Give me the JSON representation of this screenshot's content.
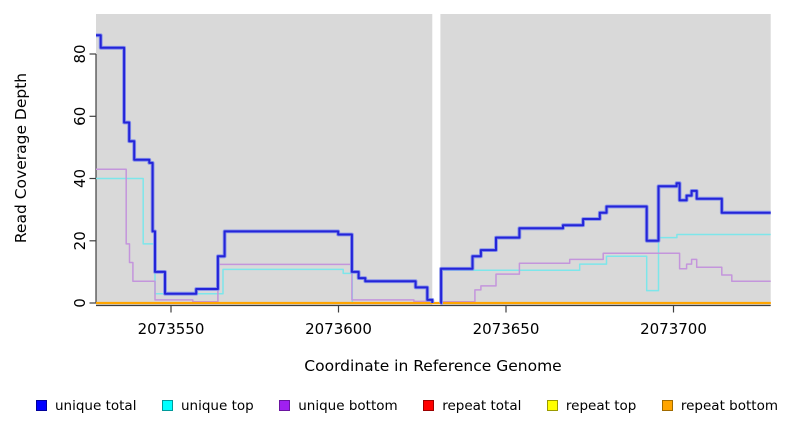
{
  "figure": {
    "background": "#ffffff"
  },
  "chart_data": {
    "type": "line",
    "subtype": "step",
    "title": "",
    "xlabel": "Coordinate in Reference Genome",
    "ylabel": "Read Coverage Depth",
    "xlim": [
      2073527.6,
      2073729
    ],
    "ylim": [
      0,
      93
    ],
    "xticks": [
      2073550,
      2073600,
      2073650,
      2073700
    ],
    "yticks": [
      0,
      20,
      40,
      60,
      80
    ],
    "gap_x": [
      2073628,
      2073630.4
    ],
    "plot_bg": "#d9d9d9",
    "axis_color": "#3f3f3f",
    "text_color": "#000000",
    "legend_position": "bottom",
    "grid": false,
    "series": [
      {
        "name": "unique total",
        "key": "unique-total",
        "color": "#2424d8",
        "halo": "#8893ea",
        "legend_color": "#0000ff",
        "legend_border": "#00009a",
        "width": 2,
        "zorder": 6,
        "segments": [
          [
            [
              2073527.6,
              86
            ],
            [
              2073529,
              82
            ],
            [
              2073536,
              58
            ],
            [
              2073537.5,
              52
            ],
            [
              2073539,
              46
            ],
            [
              2073543.5,
              45
            ],
            [
              2073544.5,
              23
            ],
            [
              2073545.2,
              10
            ],
            [
              2073548.2,
              3
            ],
            [
              2073557.5,
              4.5
            ],
            [
              2073564,
              15
            ],
            [
              2073566,
              23
            ],
            [
              2073599.9,
              22
            ],
            [
              2073604,
              10
            ],
            [
              2073606,
              8
            ],
            [
              2073608,
              7
            ],
            [
              2073623,
              5
            ],
            [
              2073626.5,
              1
            ],
            [
              2073628,
              0
            ]
          ],
          [
            [
              2073630.4,
              0
            ],
            [
              2073630.6,
              11
            ],
            [
              2073640,
              15
            ],
            [
              2073642.5,
              17
            ],
            [
              2073647,
              21
            ],
            [
              2073654,
              24
            ],
            [
              2073667,
              25
            ],
            [
              2073673,
              27
            ],
            [
              2073678,
              29
            ],
            [
              2073680,
              31
            ],
            [
              2073692,
              20
            ],
            [
              2073695.5,
              37.5
            ],
            [
              2073700.9,
              38.5
            ],
            [
              2073701.8,
              33
            ],
            [
              2073703.9,
              34.5
            ],
            [
              2073705.4,
              36
            ],
            [
              2073706.9,
              33.5
            ],
            [
              2073714.4,
              29
            ],
            [
              2073729,
              29
            ]
          ]
        ]
      },
      {
        "name": "unique top",
        "key": "unique-top",
        "color": "#7de6ea",
        "legend_color": "#00ffff",
        "legend_border": "#009a9a",
        "width": 1.5,
        "zorder": 1,
        "segments": [
          [
            [
              2073527.6,
              40
            ],
            [
              2073541.7,
              19
            ],
            [
              2073545.2,
              3
            ],
            [
              2073565.5,
              10.8
            ],
            [
              2073601.4,
              9.5
            ],
            [
              2073604.1,
              0
            ],
            [
              2073628,
              0
            ]
          ],
          [
            [
              2073630.4,
              10.5
            ],
            [
              2073672,
              12.5
            ],
            [
              2073680,
              15
            ],
            [
              2073692,
              4
            ],
            [
              2073695.5,
              21
            ],
            [
              2073701,
              22
            ],
            [
              2073729,
              22
            ]
          ]
        ]
      },
      {
        "name": "unique bottom",
        "key": "unique-bottom",
        "color": "#c495dc",
        "legend_color": "#a020f0",
        "legend_border": "#6a14a0",
        "width": 1.5,
        "zorder": 2,
        "segments": [
          [
            [
              2073527.6,
              43
            ],
            [
              2073536.6,
              19
            ],
            [
              2073537.6,
              13
            ],
            [
              2073538.6,
              7
            ],
            [
              2073545.2,
              1
            ],
            [
              2073556.5,
              0.4
            ],
            [
              2073564,
              12.4
            ],
            [
              2073604,
              1
            ],
            [
              2073622.5,
              0.5
            ],
            [
              2073628,
              0.3
            ]
          ],
          [
            [
              2073630.4,
              0.4
            ],
            [
              2073640.7,
              4.2
            ],
            [
              2073642.5,
              5.5
            ],
            [
              2073647,
              9.3
            ],
            [
              2073654,
              12.8
            ],
            [
              2073669,
              14
            ],
            [
              2073679,
              16
            ],
            [
              2073701.8,
              11
            ],
            [
              2073703.9,
              12.5
            ],
            [
              2073705.4,
              14
            ],
            [
              2073706.9,
              11.5
            ],
            [
              2073714.4,
              9
            ],
            [
              2073717.4,
              7
            ],
            [
              2073729,
              7
            ]
          ]
        ]
      },
      {
        "name": "repeat total",
        "key": "repeat-total",
        "color": "#ff0000",
        "legend_color": "#ff0000",
        "legend_border": "#9a0000",
        "width": 1.3,
        "zorder": 3,
        "segments": [
          [
            [
              2073527.6,
              0
            ],
            [
              2073729,
              0
            ]
          ]
        ]
      },
      {
        "name": "repeat top",
        "key": "repeat-top",
        "color": "#ffff00",
        "legend_color": "#ffff00",
        "legend_border": "#9a9a00",
        "width": 1.3,
        "zorder": 4,
        "segments": [
          [
            [
              2073527.6,
              0
            ],
            [
              2073729,
              0
            ]
          ]
        ]
      },
      {
        "name": "repeat bottom",
        "key": "repeat-bottom",
        "color": "#ffa500",
        "legend_color": "#ffa500",
        "legend_border": "#a06a00",
        "width": 2.2,
        "zorder": 5,
        "segments": [
          [
            [
              2073527.6,
              0
            ],
            [
              2073729,
              0
            ]
          ]
        ]
      }
    ]
  }
}
